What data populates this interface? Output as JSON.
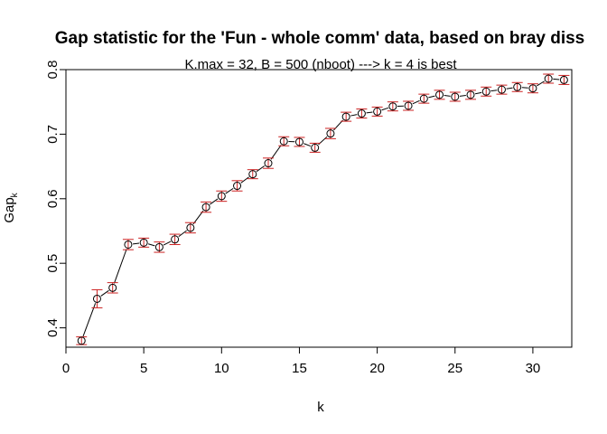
{
  "chart_data": {
    "type": "scatter",
    "title": "Gap statistic for the 'Fun - whole comm' data, based on bray diss",
    "subtitle": "K.max = 32, B = 500 (nboot) ---> k = 4 is best",
    "xlabel": "k",
    "ylabel": "Gap",
    "ylabel_subscript": "k",
    "xlim": [
      0,
      32.5
    ],
    "ylim": [
      0.37,
      0.8
    ],
    "xticks": [
      0,
      5,
      10,
      15,
      20,
      25,
      30
    ],
    "yticks": [
      0.4,
      0.5,
      0.6,
      0.7,
      0.8
    ],
    "xtick_labels": [
      "0",
      "5",
      "10",
      "15",
      "20",
      "25",
      "30"
    ],
    "ytick_labels": [
      "0.4",
      "0.5",
      "0.6",
      "0.7",
      "0.8"
    ],
    "grid": false,
    "line_color": "#000000",
    "point_color": "#000000",
    "errorbar_color": "#cc2222",
    "series": [
      {
        "x": [
          1,
          2,
          3,
          4,
          5,
          6,
          7,
          8,
          9,
          10,
          11,
          12,
          13,
          14,
          15,
          16,
          17,
          18,
          19,
          20,
          21,
          22,
          23,
          24,
          25,
          26,
          27,
          28,
          29,
          30,
          31,
          32
        ],
        "values": [
          0.38,
          0.445,
          0.462,
          0.529,
          0.532,
          0.525,
          0.537,
          0.555,
          0.587,
          0.604,
          0.62,
          0.638,
          0.655,
          0.689,
          0.688,
          0.679,
          0.701,
          0.727,
          0.732,
          0.735,
          0.743,
          0.744,
          0.755,
          0.761,
          0.758,
          0.761,
          0.766,
          0.769,
          0.773,
          0.771,
          0.786,
          0.784
        ],
        "err": [
          0.006,
          0.014,
          0.008,
          0.008,
          0.007,
          0.008,
          0.008,
          0.008,
          0.008,
          0.008,
          0.008,
          0.007,
          0.008,
          0.007,
          0.007,
          0.007,
          0.008,
          0.007,
          0.007,
          0.007,
          0.007,
          0.007,
          0.007,
          0.007,
          0.007,
          0.007,
          0.007,
          0.007,
          0.007,
          0.007,
          0.007,
          0.007
        ]
      }
    ]
  }
}
